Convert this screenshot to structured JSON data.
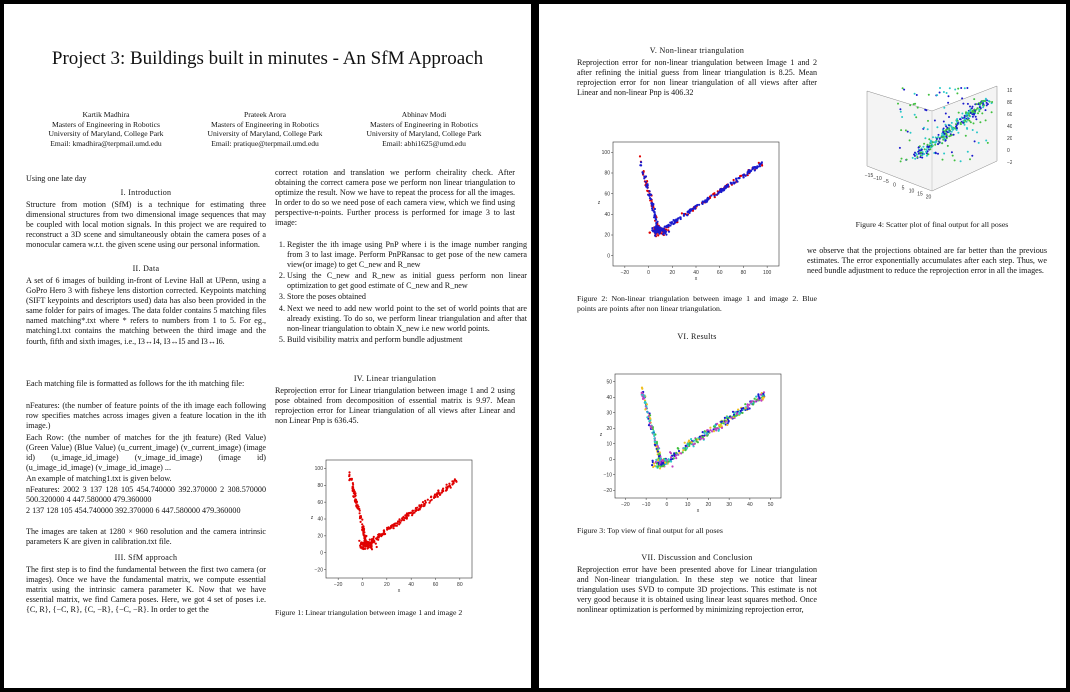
{
  "title": "Project 3: Buildings built in minutes - An SfM Approach",
  "authors": [
    {
      "name": "Kartik Madhira",
      "affiliation": "Masters of Engineering in Robotics",
      "university": "University of Maryland, College Park",
      "email": "Email: kmadhira@terpmail.umd.edu"
    },
    {
      "name": "Prateek Arora",
      "affiliation": "Masters of Engineering in Robotics",
      "university": "University of Maryland, College Park",
      "email": "Email: pratique@terpmail.umd.edu"
    },
    {
      "name": "Abhinav Modi",
      "affiliation": "Masters of Engineering in Robotics",
      "university": "University of Maryland, College Park",
      "email": "Email: abhi1625@umd.edu"
    }
  ],
  "late_day": "Using one late day",
  "sections": {
    "intro": "I. Introduction",
    "data": "II. Data",
    "sfm": "III. SfM approach",
    "linear": "IV. Linear triangulation",
    "nonlinear": "V. Non-linear triangulation",
    "results": "VI. Results",
    "discussion": "VII. Discussion and Conclusion"
  },
  "text": {
    "intro_p": "Structure from motion (SfM) is a technique for estimating three dimensional structures from two dimensional image sequences that may be coupled with local motion signals. In this project we are required to reconstruct a 3D scene and simultaneously obtain the camera poses of a monocular camera w.r.t. the given scene using our personal information.",
    "data_p1": "A set of 6 images of building in-front of Levine Hall at UPenn, using a GoPro Hero 3 with fisheye lens distortion corrected. Keypoints matching (SIFT keypoints and descriptors used) data has also been provided in the same folder for pairs of images. The data folder contains 5 matching files named matching*.txt where * refers to numbers from 1 to 5. For eg., matching1.txt contains the matching between the third image and the fourth, fifth and sixth images, i.e., I3↔I4, I3↔I5 and I3↔I6.",
    "data_p2": "Each matching file is formatted as follows for the ith matching file:",
    "data_p3": "nFeatures: (the number of feature points of the ith image each following row specifies matches across images given a feature location in the ith image.)",
    "data_p4": "Each Row: (the number of matches for the jth feature) (Red Value) (Green Value) (Blue Value) (u_current_image) (v_current_image) (image id) (u_image_id_image) (v_image_id_image) (image id) (u_image_id_image) (v_image_id_image) ...",
    "data_p5": "An example of matching1.txt is given below.",
    "data_p6": "nFeatures: 2002 3 137 128 105 454.740000 392.370000 2 308.570000 500.320000 4 447.580000 479.360000",
    "data_p7": "2 137 128 105 454.740000 392.370000 6 447.580000 479.360000",
    "data_p8": "The images are taken at 1280 × 960 resolution and the camera intrinsic parameters K are given in calibration.txt file.",
    "sfm_p1": "The first step is to find the fundamental between the first two camera (or images). Once we have the fundamental matrix, we compute essential matrix using the intrinsic camera parameter K. Now that we have essential matrix, we find Camera poses. Here, we got 4 set of poses i.e. {C, R}, {−C, R}, {C, −R}, {−C, −R}. In order to get the",
    "sfm_p2": "correct rotation and translation we perform cheirality check. After obtaining the correct camera pose we perform non linear triangulation to optimize the result. Now we have to repeat the process for all the images. In order to do so we need pose of each camera view, which we find using perspective-n-points. Further process is performed for image 3 to last image:",
    "steps": [
      "Register the ith image using PnP where i is the image number ranging from 3 to last image. Perform PnPRansac to get pose of the new camera view(or image) to get C_new and R_new",
      "Using the C_new and R_new as initial guess perform non linear optimization to get good estimate of C_new and R_new",
      "Store the poses obtained",
      "Next we need to add new world point to the set of world points that are already existing. To do so, we perform linear triangulation and after that non-linear triangulation to obtain X_new i.e new world points.",
      "Build visibility matrix and perform bundle adjustment"
    ],
    "linear_p": "Reprojection error for Linear triangulation between image 1 and 2 using pose obtained from decomposition of essential matrix is 9.97. Mean reprojection error for Linear triangulation of all views after Linear and non Linear Pnp is 636.45.",
    "nonlinear_p": "Reprojection error for non-linear triangulation between Image 1 and 2 after refining the initial guess from linear triangulation is 8.25. Mean reprojection error for non linear triangulation of all views after after Linear and non-linear Pnp is 406.32",
    "fig4_p": "we observe that the projections obtained are far better than the previous estimates. The error exponentially accumulates after each step. Thus, we need bundle adjustment to reduce the reprojection error in all the images.",
    "discussion_p": "Reprojection error have been presented above for Linear triangulation and Non-linear triangulation. In these step we notice that linear triangulation uses SVD to compute 3D projections. This estimate is not very good because it is obtained using linear least squares method. Once nonlinear optimization is performed by minimizing reprojection error,"
  },
  "captions": {
    "fig1": "Figure 1: Linear triangulation between image 1 and image 2",
    "fig2": "Figure 2: Non-linear triangulation between image 1 and image 2. Blue points are points after non linear triangulation.",
    "fig3": "Figure 3: Top view of final output for all poses",
    "fig4": "Figure 4: Scatter plot of final output for all poses"
  },
  "chart_data": [
    {
      "type": "scatter",
      "figure": "fig1",
      "xticks": [
        "−20",
        "0",
        "20",
        "40",
        "60",
        "80"
      ],
      "yticks": [
        "100",
        "80",
        "60",
        "40",
        "20",
        "0",
        "−20"
      ],
      "xlabel": "x",
      "ylabel": "z",
      "colors": [
        "#e00000"
      ]
    },
    {
      "type": "scatter",
      "figure": "fig2",
      "xticks": [
        "−20",
        "0",
        "20",
        "40",
        "60",
        "80",
        "100"
      ],
      "yticks": [
        "100",
        "80",
        "60",
        "40",
        "20",
        "0"
      ],
      "xlabel": "x",
      "ylabel": "z",
      "colors": [
        "#e00000",
        "#1a1acc"
      ]
    },
    {
      "type": "scatter",
      "figure": "fig3",
      "xticks": [
        "−20",
        "−10",
        "0",
        "10",
        "20",
        "30",
        "40",
        "50"
      ],
      "yticks": [
        "50",
        "40",
        "30",
        "20",
        "10",
        "0",
        "−10",
        "−20"
      ],
      "xlabel": "x",
      "ylabel": "z",
      "colors": [
        "#1a1acc",
        "#28c8c8",
        "#f0c020",
        "#40c040",
        "#c040c0"
      ]
    },
    {
      "type": "scatter",
      "figure": "fig4",
      "xticks": [
        "−15",
        "−10",
        "−5",
        "0",
        "5",
        "10",
        "15",
        "20"
      ],
      "yticks": [
        "−20",
        "0",
        "20",
        "40",
        "60",
        "80",
        "100"
      ],
      "colors": [
        "#1a1acc",
        "#28c8c8",
        "#40c040"
      ]
    }
  ]
}
